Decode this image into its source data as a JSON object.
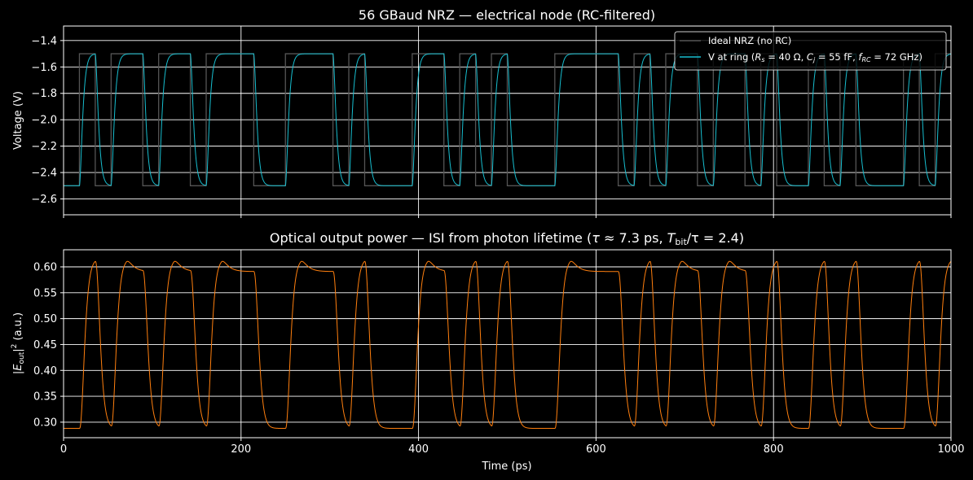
{
  "chart_data": [
    {
      "type": "line",
      "title": "56 GBaud NRZ — electrical node (RC-filtered)",
      "xlabel": "",
      "ylabel": "Voltage (V)",
      "xlim": [
        0,
        1000
      ],
      "ylim": [
        -2.72,
        -1.29
      ],
      "xticks": [
        0,
        200,
        400,
        600,
        800,
        1000
      ],
      "yticks": [
        -2.6,
        -2.4,
        -2.2,
        -2.0,
        -1.8,
        -1.6,
        -1.4
      ],
      "ytick_labels": [
        "−2.6",
        "−2.4",
        "−2.2",
        "−2.0",
        "−1.8",
        "−1.6",
        "−1.4"
      ],
      "grid": true,
      "legend_placement": "top-right",
      "bit_period_ps": 17.857,
      "bit_levels_V": [
        -2.5,
        -1.5
      ],
      "bits": [
        0,
        1,
        0,
        1,
        1,
        0,
        1,
        1,
        0,
        1,
        1,
        1,
        0,
        0,
        1,
        1,
        1,
        0,
        1,
        0,
        0,
        0,
        1,
        1,
        0,
        1,
        0,
        1,
        0,
        0,
        0,
        1,
        1,
        1,
        1,
        0,
        1,
        0,
        1,
        1,
        0,
        1,
        1,
        0,
        1,
        0,
        0,
        1,
        0,
        1,
        0,
        0,
        0,
        1,
        0,
        1
      ],
      "series": [
        {
          "name": "Ideal NRZ (no RC)",
          "color": "#555555"
        },
        {
          "name": "V at ring",
          "color": "#17becf",
          "rc_time_constant_ps": 2.2
        }
      ]
    },
    {
      "type": "line",
      "title": "Optical output power — ISI from photon lifetime",
      "xlabel": "Time (ps)",
      "ylabel": "(a.u.)",
      "xlim": [
        0,
        1000
      ],
      "ylim": [
        0.27,
        0.633
      ],
      "xticks": [
        0,
        200,
        400,
        600,
        800,
        1000
      ],
      "yticks": [
        0.3,
        0.35,
        0.4,
        0.45,
        0.5,
        0.55,
        0.6
      ],
      "ytick_labels": [
        "0.30",
        "0.35",
        "0.40",
        "0.45",
        "0.50",
        "0.55",
        "0.60"
      ],
      "grid": true,
      "series": [
        {
          "name": "",
          "color": "#ff7f0e",
          "power_low": 0.288,
          "power_high": 0.591,
          "peak": 0.616,
          "photon_lifetime_ps": 7.3
        }
      ]
    }
  ],
  "legend": {
    "ideal_label": "Ideal NRZ (no RC)",
    "ring_label_prefix": "V at ring (",
    "ring_Rs": " = 40 Ω, ",
    "ring_Cj": " = 55 fF, ",
    "ring_fRC": " = 72 GHz)"
  },
  "subtitle2": {
    "prefix": "Optical output power — ISI from photon lifetime (",
    "tau_mid": " ≈  7.3 ps, ",
    "ratio_mid": "/τ = 2.4)"
  },
  "xaxis": {
    "tick_labels": [
      "0",
      "200",
      "400",
      "600",
      "800",
      "1000"
    ],
    "label": "Time (ps)"
  },
  "colors": {
    "background": "#000000",
    "ideal": "#555555",
    "ring": "#17becf",
    "optical": "#ff7f0e",
    "grid": "#ffffff"
  }
}
